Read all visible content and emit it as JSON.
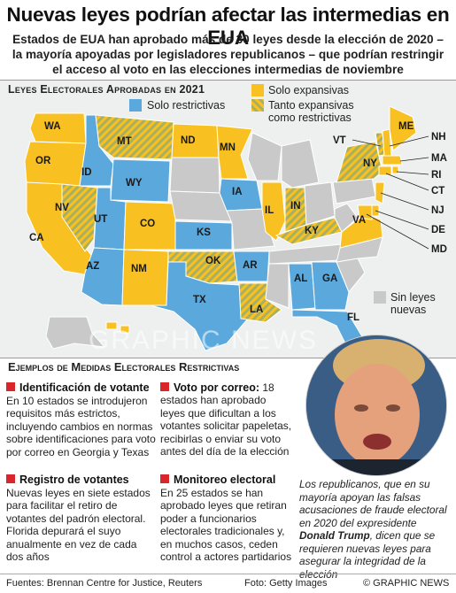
{
  "title": "Nuevas leyes podrían afectar las intermedias en EUA",
  "subtitle": "Estados de EUA han aprobado más de 30 leyes desde la elección de 2020 – la mayoría apoyadas por legisladores republicanos – que podrían restringir el acceso al voto en las elecciones intermedias de noviembre",
  "map": {
    "heading": "Leyes Electorales  Aprobadas en 2021",
    "legend": {
      "expansive": "Solo expansivas",
      "restrictive": "Solo restrictivas",
      "both_line1": "Tanto expansivas",
      "both_line2": "como restrictivas",
      "none_line1": "Sin leyes",
      "none_line2": "nuevas"
    },
    "colors": {
      "expansive": "#f8c020",
      "restrictive": "#5aa8dc",
      "both": "#a8b060",
      "none": "#c9c9c9"
    },
    "states": {
      "WA": "WA",
      "OR": "OR",
      "CA": "CA",
      "NV": "NV",
      "ID": "ID",
      "MT": "MT",
      "WY": "WY",
      "UT": "UT",
      "AZ": "AZ",
      "CO": "CO",
      "NM": "NM",
      "ND": "ND",
      "MN": "MN",
      "IA": "IA",
      "KS": "KS",
      "OK": "OK",
      "TX": "TX",
      "AR": "AR",
      "LA": "LA",
      "IL": "IL",
      "IN": "IN",
      "KY": "KY",
      "AL": "AL",
      "GA": "GA",
      "FL": "FL",
      "VA": "VA",
      "NY": "NY",
      "ME": "ME"
    },
    "callouts": [
      "VT",
      "NH",
      "MA",
      "RI",
      "CT",
      "NJ",
      "DE",
      "MD"
    ]
  },
  "watermark": "GRAPHIC NEWS",
  "examples": {
    "heading": "Ejemplos de Medidas Electorales Restrictivas",
    "items": [
      {
        "title": "Identificación de votante",
        "body": "En 10 estados se introdujeron requisitos más estrictos, incluyendo cambios en normas sobre identificaciones para voto por correo en Georgia y Texas"
      },
      {
        "title": "Voto por correo:",
        "title_rest": " 18 estados han aprobado leyes que dificultan a los votantes solicitar papeletas, recibirlas o enviar su voto antes del día de la elección"
      },
      {
        "title": "Registro de votantes",
        "body": "Nuevas leyes en siete estados para facilitar el retiro de votantes del padrón electoral. Florida depurará el suyo anualmente en vez de cada dos años"
      },
      {
        "title": "Monitoreo electoral",
        "body": "En 25 estados se han aprobado leyes que retiran poder a funcionarios electorales tradicionales y, en muchos casos, ceden control a actores partidarios"
      }
    ]
  },
  "caption": {
    "part1": "Los republicanos, que en su mayoría apoyan las falsas acusaciones de fraude electoral en 2020 del expresidente ",
    "name": "Donald Trump",
    "part2": ", dicen que se requieren nuevas leyes para asegurar la integridad de la elección"
  },
  "footer": {
    "sources": "Fuentes: Brennan Centre for Justice, Reuters",
    "photo": "Foto: Getty Images",
    "credit": "© GRAPHIC NEWS"
  }
}
